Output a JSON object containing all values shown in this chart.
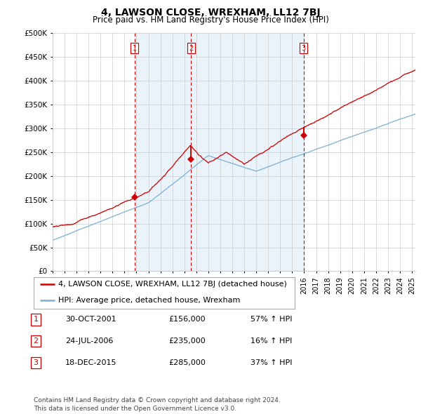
{
  "title": "4, LAWSON CLOSE, WREXHAM, LL12 7BJ",
  "subtitle": "Price paid vs. HM Land Registry's House Price Index (HPI)",
  "ylim": [
    0,
    500000
  ],
  "yticks": [
    0,
    50000,
    100000,
    150000,
    200000,
    250000,
    300000,
    350000,
    400000,
    450000,
    500000
  ],
  "xlim_start": 1995.0,
  "xlim_end": 2025.3,
  "hpi_color": "#7bafd4",
  "hpi_fill_color": "#d6e8f7",
  "price_color": "#cc0000",
  "vline_color": "#cc0000",
  "grid_color": "#cccccc",
  "background_color": "#ffffff",
  "sale_dates": [
    2001.831,
    2006.558,
    2015.962
  ],
  "sale_prices": [
    156000,
    235000,
    285000
  ],
  "sale_labels": [
    "1",
    "2",
    "3"
  ],
  "legend_entries": [
    "4, LAWSON CLOSE, WREXHAM, LL12 7BJ (detached house)",
    "HPI: Average price, detached house, Wrexham"
  ],
  "table_rows": [
    [
      "1",
      "30-OCT-2001",
      "£156,000",
      "57% ↑ HPI"
    ],
    [
      "2",
      "24-JUL-2006",
      "£235,000",
      "16% ↑ HPI"
    ],
    [
      "3",
      "18-DEC-2015",
      "£285,000",
      "37% ↑ HPI"
    ]
  ],
  "footnote": "Contains HM Land Registry data © Crown copyright and database right 2024.\nThis data is licensed under the Open Government Licence v3.0.",
  "title_fontsize": 10,
  "subtitle_fontsize": 8.5,
  "tick_fontsize": 7.5,
  "legend_fontsize": 8,
  "table_fontsize": 8,
  "footnote_fontsize": 6.5
}
